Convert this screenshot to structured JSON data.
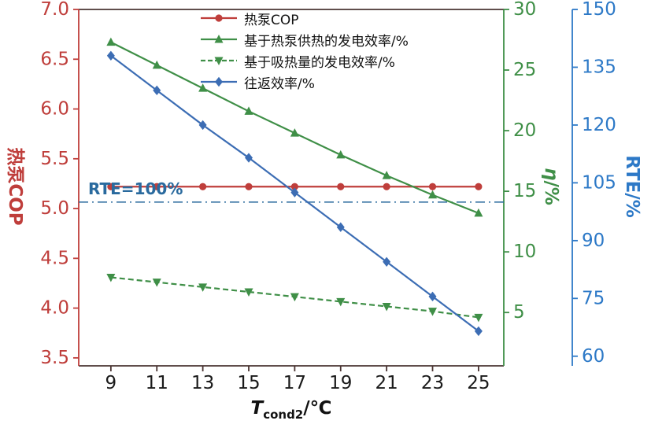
{
  "chart_data": {
    "type": "line",
    "title": "",
    "frame_color": "#4a3432",
    "x_label": {
      "main": "T",
      "sub": "cond2",
      "suffix": "/℃"
    },
    "x_axis": {
      "range": [
        7.6,
        26.1
      ],
      "ticks": [
        9,
        11,
        13,
        15,
        17,
        19,
        21,
        23,
        25
      ]
    },
    "x": [
      9,
      11,
      13,
      15,
      17,
      19,
      21,
      23,
      25
    ],
    "axes": {
      "cop": {
        "title": "热泵COP",
        "color": "#bf3e3b",
        "top": 7.0,
        "bottom": 3.42,
        "ticks": [
          3.5,
          4.0,
          4.5,
          5.0,
          5.5,
          6.0,
          6.5,
          7.0
        ],
        "decimals": 1,
        "side": "left"
      },
      "eta": {
        "title_main": "η",
        "title_suffix": "/%",
        "color": "#3f8f47",
        "top": 30,
        "bottom": 0.6,
        "ticks": [
          5,
          10,
          15,
          20,
          25,
          30
        ],
        "decimals": 0,
        "side": "right"
      },
      "rte": {
        "title": "RTE/%",
        "color": "#2d79c7",
        "top": 150,
        "bottom": 57.5,
        "ticks": [
          60,
          75,
          90,
          105,
          120,
          135,
          150
        ],
        "decimals": 0,
        "side": "far-right"
      }
    },
    "series": [
      {
        "id": "cop",
        "name": "热泵COP",
        "axis": "cop",
        "marker": "circle",
        "color": "#bf3e3b",
        "dashed": false,
        "values": [
          5.22,
          5.22,
          5.22,
          5.22,
          5.22,
          5.22,
          5.22,
          5.22,
          5.22
        ]
      },
      {
        "id": "eta-hp",
        "name": "基于热泵供热的发电效率/%",
        "axis": "eta",
        "marker": "triangle-up",
        "color": "#3f8f47",
        "dashed": false,
        "values": [
          27.3,
          25.4,
          23.5,
          21.6,
          19.8,
          18.0,
          16.3,
          14.7,
          13.2
        ]
      },
      {
        "id": "eta-abs",
        "name": "基于吸热量的发电效率/%",
        "axis": "eta",
        "marker": "triangle-down",
        "color": "#3f8f47",
        "dashed": true,
        "values": [
          7.9,
          7.5,
          7.1,
          6.7,
          6.3,
          5.9,
          5.5,
          5.1,
          4.6
        ]
      },
      {
        "id": "rte",
        "name": "往返效率/%",
        "axis": "rte",
        "marker": "diamond",
        "color": "#3c6db4",
        "dashed": false,
        "values": [
          138,
          129,
          120,
          111.5,
          102.5,
          93.5,
          84.5,
          75.5,
          66.5
        ]
      }
    ],
    "annotation": {
      "text": "RTE=100%",
      "axis": "rte",
      "value": 100,
      "color": "#2a6a9e",
      "dash": "12 5 2 5"
    },
    "legend_position": "top-center",
    "grid": false
  }
}
